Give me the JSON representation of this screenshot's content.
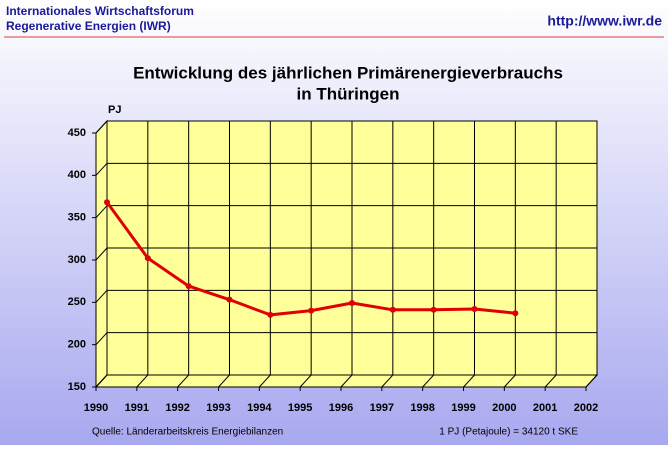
{
  "header": {
    "org_line1": "Internationales Wirtschaftsforum",
    "org_line2": "Regenerative Energien (IWR)",
    "url": "http://www.iwr.de"
  },
  "chart_data": {
    "type": "line",
    "title_line1": "Entwicklung des jährlichen Primärenergieverbrauchs",
    "title_line2": "in Thüringen",
    "y_label": "PJ",
    "x": [
      1990,
      1991,
      1992,
      1993,
      1994,
      1995,
      1996,
      1997,
      1998,
      1999,
      2000
    ],
    "series": [
      {
        "name": "Primärenergieverbrauch",
        "color": "#e00000",
        "values": [
          354,
          288,
          255,
          239,
          221,
          226,
          235,
          227,
          227,
          228,
          223
        ]
      }
    ],
    "xlim": [
      1990,
      2002
    ],
    "xticks": [
      1990,
      1991,
      1992,
      1993,
      1994,
      1995,
      1996,
      1997,
      1998,
      1999,
      2000,
      2001,
      2002
    ],
    "ylim": [
      150,
      450
    ],
    "yticks": [
      150,
      200,
      250,
      300,
      350,
      400,
      450
    ],
    "grid": true,
    "source": "Quelle: Länderarbeitskreis Energiebilanzen",
    "note": "1 PJ (Petajoule) = 34120 t SKE"
  }
}
